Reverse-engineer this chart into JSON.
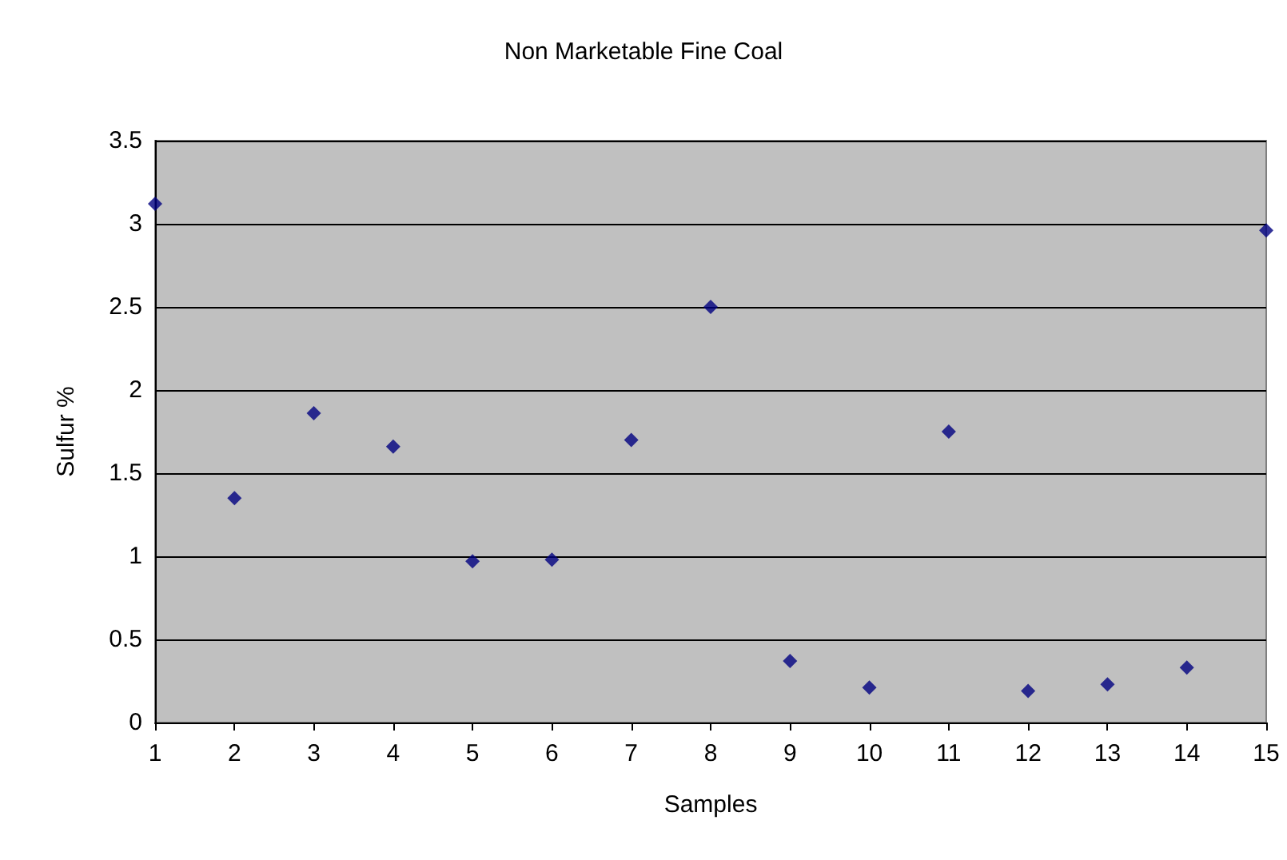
{
  "chart_data": {
    "type": "scatter",
    "title": "Non Marketable Fine Coal",
    "xlabel": "Samples",
    "ylabel": "Sulfur %",
    "x": [
      1,
      2,
      3,
      4,
      5,
      6,
      7,
      8,
      9,
      10,
      11,
      12,
      13,
      14,
      15
    ],
    "values": [
      3.12,
      1.35,
      1.86,
      1.66,
      0.97,
      0.98,
      1.7,
      2.5,
      0.37,
      0.21,
      1.75,
      0.19,
      0.23,
      0.33,
      2.96
    ],
    "color": "#000080",
    "marker": "diamond",
    "grid": "y",
    "xlim": [
      1,
      15
    ],
    "xticks": [
      1,
      2,
      3,
      4,
      5,
      6,
      7,
      8,
      9,
      10,
      11,
      12,
      13,
      14,
      15
    ],
    "ylim": [
      0,
      3.5
    ],
    "yticks": [
      0,
      0.5,
      1,
      1.5,
      2,
      2.5,
      3,
      3.5
    ]
  }
}
